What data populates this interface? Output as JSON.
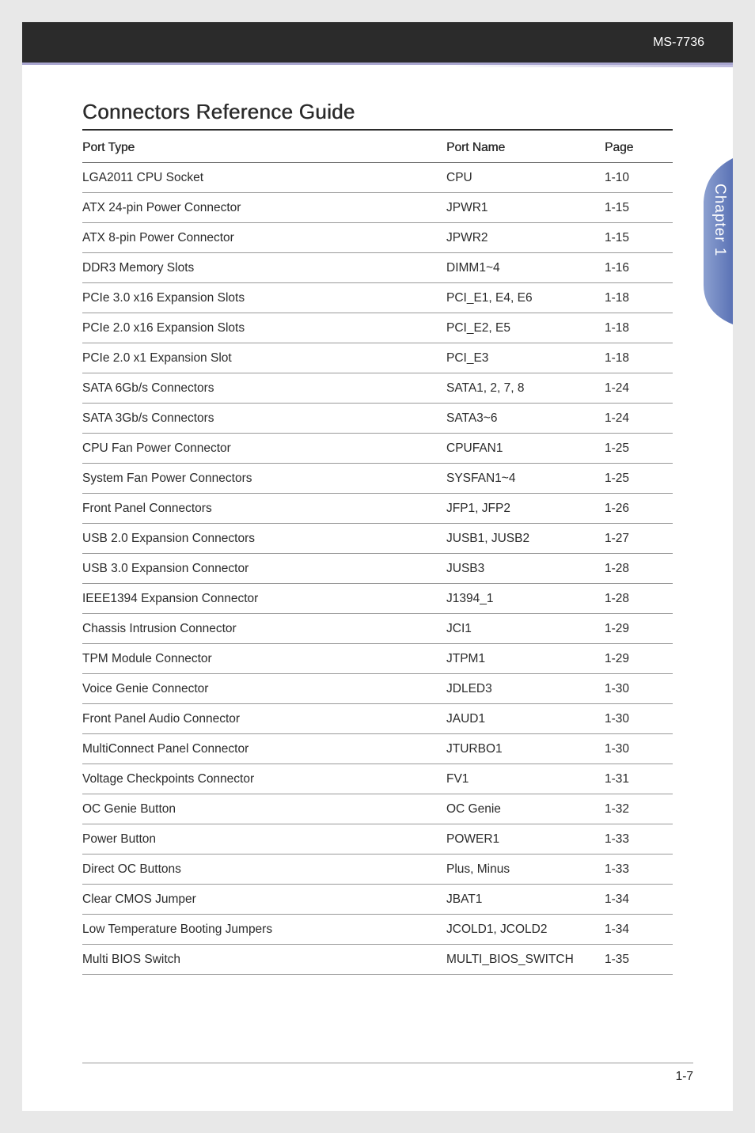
{
  "header": {
    "model": "MS-7736"
  },
  "title": "Connectors Reference Guide",
  "table": {
    "headers": {
      "type": "Port Type",
      "name": "Port Name",
      "page": "Page"
    },
    "rows": [
      {
        "type": "LGA2011 CPU Socket",
        "name": "CPU",
        "page": "1-10"
      },
      {
        "type": "ATX 24-pin Power Connector",
        "name": "JPWR1",
        "page": "1-15"
      },
      {
        "type": "ATX 8-pin Power Connector",
        "name": "JPWR2",
        "page": "1-15"
      },
      {
        "type": "DDR3 Memory Slots",
        "name": "DIMM1~4",
        "page": "1-16"
      },
      {
        "type": "PCIe 3.0 x16 Expansion Slots",
        "name": "PCI_E1, E4, E6",
        "page": "1-18"
      },
      {
        "type": "PCIe 2.0 x16 Expansion Slots",
        "name": "PCI_E2, E5",
        "page": "1-18"
      },
      {
        "type": "PCIe 2.0 x1 Expansion Slot",
        "name": "PCI_E3",
        "page": "1-18"
      },
      {
        "type": "SATA 6Gb/s Connectors",
        "name": "SATA1, 2, 7, 8",
        "page": "1-24"
      },
      {
        "type": "SATA 3Gb/s Connectors",
        "name": "SATA3~6",
        "page": "1-24"
      },
      {
        "type": "CPU Fan Power Connector",
        "name": "CPUFAN1",
        "page": "1-25"
      },
      {
        "type": "System Fan Power Connectors",
        "name": "SYSFAN1~4",
        "page": "1-25"
      },
      {
        "type": "Front Panel Connectors",
        "name": "JFP1, JFP2",
        "page": "1-26"
      },
      {
        "type": "USB 2.0 Expansion Connectors",
        "name": "JUSB1, JUSB2",
        "page": "1-27"
      },
      {
        "type": "USB 3.0 Expansion Connector",
        "name": "JUSB3",
        "page": "1-28"
      },
      {
        "type": "IEEE1394 Expansion Connector",
        "name": "J1394_1",
        "page": "1-28"
      },
      {
        "type": "Chassis Intrusion Connector",
        "name": "JCI1",
        "page": "1-29"
      },
      {
        "type": "TPM Module Connector",
        "name": "JTPM1",
        "page": "1-29"
      },
      {
        "type": "Voice Genie Connector",
        "name": "JDLED3",
        "page": "1-30"
      },
      {
        "type": "Front Panel Audio Connector",
        "name": "JAUD1",
        "page": "1-30"
      },
      {
        "type": "MultiConnect Panel Connector",
        "name": "JTURBO1",
        "page": "1-30"
      },
      {
        "type": "Voltage Checkpoints Connector",
        "name": "FV1",
        "page": "1-31"
      },
      {
        "type": "OC Genie Button",
        "name": "OC Genie",
        "page": "1-32"
      },
      {
        "type": "Power Button",
        "name": "POWER1",
        "page": "1-33"
      },
      {
        "type": "Direct OC Buttons",
        "name": "Plus, Minus",
        "page": "1-33"
      },
      {
        "type": "Clear CMOS Jumper",
        "name": "JBAT1",
        "page": "1-34"
      },
      {
        "type": "Low Temperature Booting Jumpers",
        "name": "JCOLD1, JCOLD2",
        "page": "1-34"
      },
      {
        "type": "Multi BIOS Switch",
        "name": "MULTI_BIOS_SWITCH",
        "page": "1-35"
      }
    ]
  },
  "sidetab": {
    "label": "Chapter 1"
  },
  "footer": {
    "page": "1-7"
  },
  "colors": {
    "header_bg": "#2b2b2b",
    "header_underline": "#a9a6d0",
    "row_border": "#999999",
    "tab_fill": "#6e85c0",
    "text": "#2b2b2b"
  }
}
